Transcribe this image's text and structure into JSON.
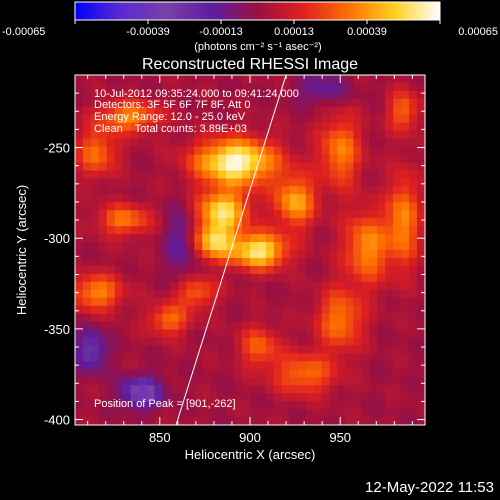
{
  "colorbar": {
    "ticks": [
      "-0.00065",
      "-0.00039",
      "-0.00013",
      "0.00013",
      "0.00039",
      "0.00065"
    ],
    "tick_values": [
      -0.00065,
      -0.00039,
      -0.00013,
      0.00013,
      0.00039,
      0.00065
    ],
    "range": [
      -0.00065,
      0.00065
    ],
    "unit_label": "(photons cm⁻² s⁻¹ asec⁻²)",
    "colormap": [
      "#0000ff",
      "#5a2ad0",
      "#7a40a8",
      "#5c1ea0",
      "#9a1040",
      "#e02020",
      "#ff7000",
      "#ffd020",
      "#ffffff"
    ]
  },
  "chart_data": {
    "type": "heatmap",
    "title": "Reconstructed RHESSI Image",
    "xlabel": "Heliocentric X (arcsec)",
    "ylabel": "Heliocentric Y (arcsec)",
    "xlim": [
      803,
      997
    ],
    "ylim": [
      -403,
      -210
    ],
    "xticks": [
      "850",
      "900",
      "950"
    ],
    "xtick_values": [
      850,
      900,
      950
    ],
    "yticks": [
      "-250",
      "-300",
      "-350",
      "-400"
    ],
    "ytick_values": [
      -250,
      -300,
      -350,
      -400
    ],
    "annotations": {
      "time_range": "10-Jul-2012 09:35:24.000 to 09:41:24.000",
      "detectors": "Detectors: 3F 5F 6F 7F 8F, Att 0",
      "energy_range": "Energy Range: 12.0 - 25.0 keV",
      "clean": "Clean    Total counts: 3.89E+03",
      "peak": "Position of Peak = [901,-262]"
    },
    "limb_line": {
      "x": [
        859,
        920
      ],
      "y": [
        -403,
        -210
      ]
    },
    "blobs": [
      {
        "x": 892,
        "y": -258,
        "sx": 16,
        "sy": 9,
        "v": 0.00062
      },
      {
        "x": 885,
        "y": -285,
        "sx": 10,
        "sy": 8,
        "v": 0.0005
      },
      {
        "x": 905,
        "y": -307,
        "sx": 11,
        "sy": 7,
        "v": 0.00055
      },
      {
        "x": 880,
        "y": -302,
        "sx": 8,
        "sy": 7,
        "v": 0.00045
      },
      {
        "x": 925,
        "y": -280,
        "sx": 8,
        "sy": 10,
        "v": 0.0004
      },
      {
        "x": 833,
        "y": -233,
        "sx": 12,
        "sy": 6,
        "v": 0.00035
      },
      {
        "x": 815,
        "y": -253,
        "sx": 8,
        "sy": 9,
        "v": 0.0003
      },
      {
        "x": 830,
        "y": -290,
        "sx": 10,
        "sy": 6,
        "v": 0.00032
      },
      {
        "x": 815,
        "y": -330,
        "sx": 10,
        "sy": 7,
        "v": 0.00035
      },
      {
        "x": 855,
        "y": -345,
        "sx": 8,
        "sy": 6,
        "v": 0.0003
      },
      {
        "x": 870,
        "y": -330,
        "sx": 8,
        "sy": 6,
        "v": 0.00028
      },
      {
        "x": 950,
        "y": -252,
        "sx": 8,
        "sy": 14,
        "v": 0.00033
      },
      {
        "x": 965,
        "y": -305,
        "sx": 9,
        "sy": 14,
        "v": 0.00036
      },
      {
        "x": 985,
        "y": -290,
        "sx": 6,
        "sy": 18,
        "v": 0.00035
      },
      {
        "x": 950,
        "y": -345,
        "sx": 9,
        "sy": 12,
        "v": 0.00032
      },
      {
        "x": 930,
        "y": -375,
        "sx": 12,
        "sy": 8,
        "v": 0.0003
      },
      {
        "x": 905,
        "y": -360,
        "sx": 8,
        "sy": 8,
        "v": 0.00026
      },
      {
        "x": 985,
        "y": -230,
        "sx": 6,
        "sy": 8,
        "v": 0.00028
      },
      {
        "x": 840,
        "y": -385,
        "sx": 8,
        "sy": 6,
        "v": -0.0004
      },
      {
        "x": 812,
        "y": -362,
        "sx": 6,
        "sy": 8,
        "v": -0.0003
      },
      {
        "x": 862,
        "y": -302,
        "sx": 6,
        "sy": 14,
        "v": -0.0002
      },
      {
        "x": 940,
        "y": -218,
        "sx": 10,
        "sy": 6,
        "v": -0.00018
      }
    ]
  },
  "footer": {
    "timestamp": "12-May-2022 11:53"
  }
}
